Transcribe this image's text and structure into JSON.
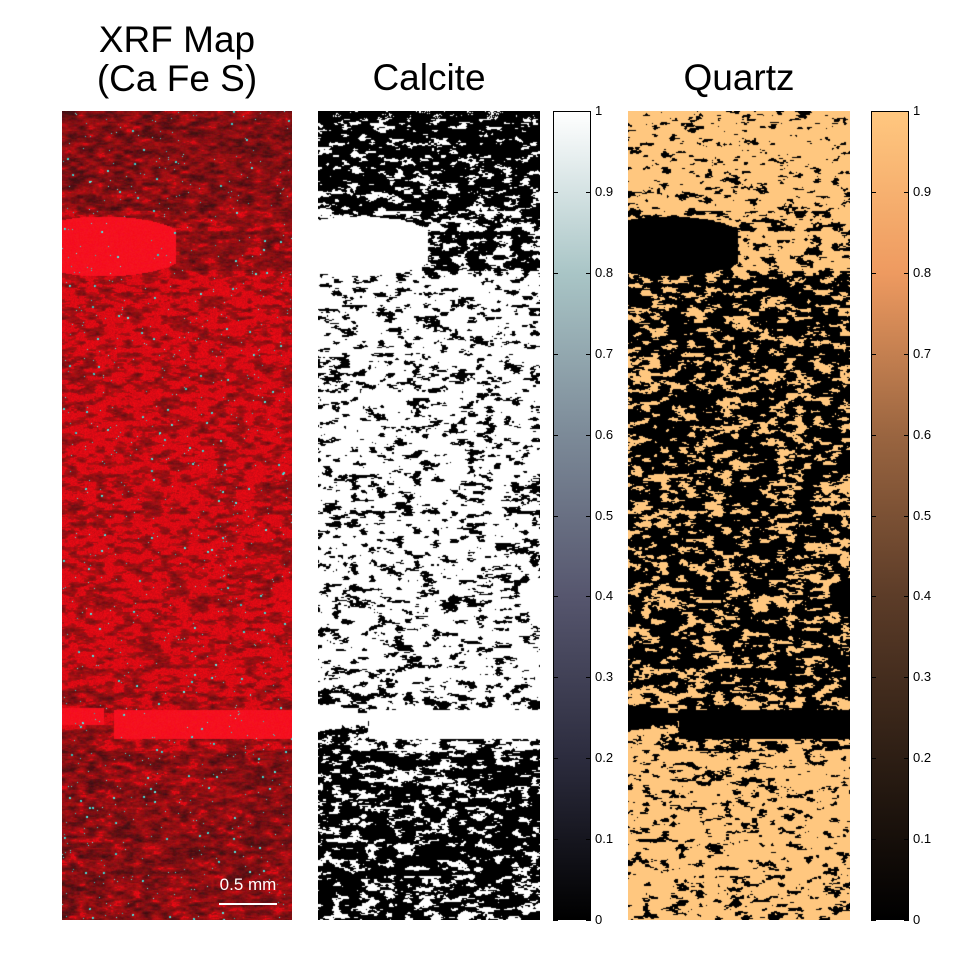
{
  "panels": {
    "xrf": {
      "title_line1": "XRF Map",
      "title_line2": "(Ca Fe S)",
      "scale_bar": "0.5 mm"
    },
    "calcite": {
      "title": "Calcite"
    },
    "quartz": {
      "title": "Quartz"
    }
  },
  "colorbars": {
    "calcite": {
      "ticks": [
        "1",
        "0.9",
        "0.8",
        "0.7",
        "0.6",
        "0.5",
        "0.4",
        "0.3",
        "0.2",
        "0.1",
        "0"
      ],
      "range": [
        0,
        1
      ],
      "colors": [
        "#000000",
        "#ffffff"
      ]
    },
    "quartz": {
      "ticks": [
        "1",
        "0.9",
        "0.8",
        "0.7",
        "0.6",
        "0.5",
        "0.4",
        "0.3",
        "0.2",
        "0.1",
        "0"
      ],
      "range": [
        0,
        1
      ],
      "colors": [
        "#000000",
        "#ffc77f"
      ]
    }
  },
  "colors": {
    "ca_red": "#e0101a",
    "fe_cyan": "#40e0d0",
    "quartz_peach": "#ffc77f"
  }
}
